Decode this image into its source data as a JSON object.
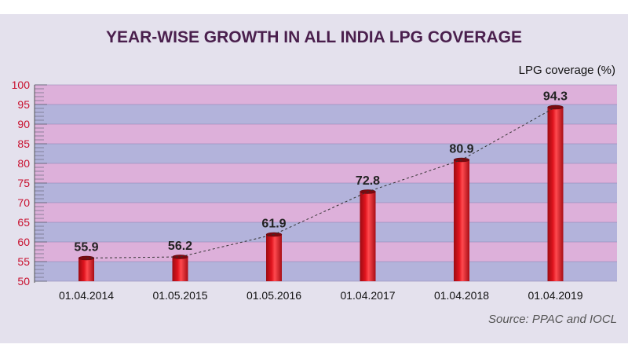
{
  "chart_data": {
    "type": "bar",
    "title": "YEAR-WISE GROWTH IN ALL INDIA LPG COVERAGE",
    "ylabel": "LPG coverage (%)",
    "xlabel": "",
    "source": "Source: PPAC and IOCL",
    "categories": [
      "01.04.2014",
      "01.05.2015",
      "01.05.2016",
      "01.04.2017",
      "01.04.2018",
      "01.04.2019"
    ],
    "values": [
      55.9,
      56.2,
      61.9,
      72.8,
      80.9,
      94.3
    ],
    "value_labels": [
      "55.9",
      "56.2",
      "61.9",
      "72.8",
      "80.9",
      "94.3"
    ],
    "ylim": [
      50,
      100
    ],
    "yticks": [
      "50",
      "55",
      "60",
      "65",
      "70",
      "75",
      "80",
      "85",
      "90",
      "95",
      "100"
    ],
    "band_colors": [
      "#b3b3db",
      "#ddb0da"
    ],
    "bar_color": "#e0141e",
    "trend_line": "dashed"
  }
}
